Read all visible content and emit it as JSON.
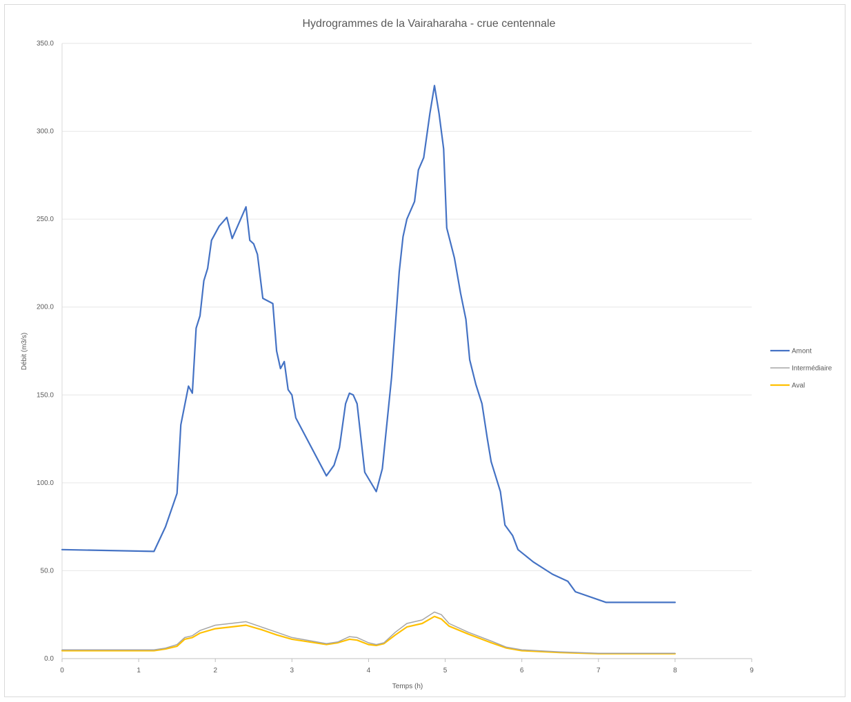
{
  "chart_data": {
    "type": "line",
    "title": "Hydrogrammes de la Vairaharaha - crue centennale",
    "xlabel": "Temps (h)",
    "ylabel": "Débit (m3/s)",
    "xlim": [
      0,
      9
    ],
    "ylim": [
      0,
      350
    ],
    "xticks": [
      "0",
      "1",
      "2",
      "3",
      "4",
      "5",
      "6",
      "7",
      "8",
      "9"
    ],
    "yticks": [
      "0.0",
      "50.0",
      "100.0",
      "150.0",
      "200.0",
      "250.0",
      "300.0",
      "350.0"
    ],
    "grid": "horizontal",
    "legend": "right",
    "colors": {
      "Amont": "#4472c4",
      "Intermédiaire": "#a5a5a5",
      "Aval": "#ffc000"
    },
    "series": [
      {
        "name": "Amont",
        "points": [
          [
            0,
            62
          ],
          [
            1.2,
            61
          ],
          [
            1.35,
            75
          ],
          [
            1.5,
            94
          ],
          [
            1.55,
            133
          ],
          [
            1.65,
            155
          ],
          [
            1.7,
            151
          ],
          [
            1.75,
            188
          ],
          [
            1.8,
            195
          ],
          [
            1.85,
            215
          ],
          [
            1.9,
            222
          ],
          [
            1.95,
            238
          ],
          [
            2.05,
            246
          ],
          [
            2.15,
            251
          ],
          [
            2.22,
            239
          ],
          [
            2.3,
            247
          ],
          [
            2.4,
            257
          ],
          [
            2.45,
            238
          ],
          [
            2.5,
            236
          ],
          [
            2.55,
            230
          ],
          [
            2.62,
            205
          ],
          [
            2.75,
            202
          ],
          [
            2.8,
            175
          ],
          [
            2.85,
            165
          ],
          [
            2.9,
            169
          ],
          [
            2.95,
            153
          ],
          [
            3.0,
            150
          ],
          [
            3.05,
            137
          ],
          [
            3.45,
            104
          ],
          [
            3.55,
            110
          ],
          [
            3.62,
            120
          ],
          [
            3.7,
            145
          ],
          [
            3.75,
            151
          ],
          [
            3.8,
            150
          ],
          [
            3.85,
            145
          ],
          [
            3.95,
            106
          ],
          [
            4.1,
            95
          ],
          [
            4.18,
            108
          ],
          [
            4.3,
            160
          ],
          [
            4.4,
            220
          ],
          [
            4.45,
            240
          ],
          [
            4.5,
            250
          ],
          [
            4.6,
            260
          ],
          [
            4.65,
            278
          ],
          [
            4.72,
            285
          ],
          [
            4.8,
            310
          ],
          [
            4.86,
            326
          ],
          [
            4.92,
            310
          ],
          [
            4.98,
            290
          ],
          [
            5.02,
            245
          ],
          [
            5.12,
            228
          ],
          [
            5.2,
            208
          ],
          [
            5.27,
            193
          ],
          [
            5.32,
            170
          ],
          [
            5.4,
            156
          ],
          [
            5.48,
            145
          ],
          [
            5.55,
            125
          ],
          [
            5.6,
            112
          ],
          [
            5.72,
            95
          ],
          [
            5.78,
            76
          ],
          [
            5.88,
            70
          ],
          [
            5.95,
            62
          ],
          [
            6.15,
            55
          ],
          [
            6.4,
            48
          ],
          [
            6.6,
            44
          ],
          [
            6.7,
            38
          ],
          [
            7.1,
            32
          ],
          [
            8,
            32
          ]
        ]
      },
      {
        "name": "Intermédiaire",
        "points": [
          [
            0,
            5
          ],
          [
            1.2,
            5
          ],
          [
            1.35,
            6
          ],
          [
            1.5,
            8
          ],
          [
            1.6,
            12
          ],
          [
            1.7,
            13
          ],
          [
            1.8,
            16
          ],
          [
            2.0,
            19
          ],
          [
            2.2,
            20
          ],
          [
            2.4,
            21
          ],
          [
            2.6,
            18
          ],
          [
            2.8,
            15
          ],
          [
            3.0,
            12
          ],
          [
            3.45,
            8.5
          ],
          [
            3.6,
            9.5
          ],
          [
            3.75,
            12.5
          ],
          [
            3.85,
            12
          ],
          [
            4.0,
            9
          ],
          [
            4.1,
            8
          ],
          [
            4.2,
            9
          ],
          [
            4.35,
            15
          ],
          [
            4.5,
            20
          ],
          [
            4.7,
            22
          ],
          [
            4.86,
            26.5
          ],
          [
            4.95,
            25
          ],
          [
            5.05,
            20
          ],
          [
            5.3,
            15
          ],
          [
            5.6,
            10
          ],
          [
            5.8,
            6.5
          ],
          [
            6.0,
            5
          ],
          [
            6.5,
            3.8
          ],
          [
            7.0,
            3
          ],
          [
            8,
            3
          ]
        ]
      },
      {
        "name": "Aval",
        "points": [
          [
            0,
            4.5
          ],
          [
            1.2,
            4.5
          ],
          [
            1.35,
            5.5
          ],
          [
            1.5,
            7
          ],
          [
            1.6,
            11
          ],
          [
            1.7,
            12
          ],
          [
            1.8,
            14.5
          ],
          [
            2.0,
            17
          ],
          [
            2.2,
            18
          ],
          [
            2.4,
            19
          ],
          [
            2.6,
            16.5
          ],
          [
            2.8,
            13.5
          ],
          [
            3.0,
            11
          ],
          [
            3.45,
            8
          ],
          [
            3.6,
            9
          ],
          [
            3.75,
            11
          ],
          [
            3.85,
            10.5
          ],
          [
            4.0,
            8
          ],
          [
            4.1,
            7.5
          ],
          [
            4.2,
            8.5
          ],
          [
            4.35,
            13.5
          ],
          [
            4.5,
            18
          ],
          [
            4.7,
            20
          ],
          [
            4.86,
            24
          ],
          [
            4.95,
            22.5
          ],
          [
            5.05,
            18.5
          ],
          [
            5.3,
            14
          ],
          [
            5.6,
            9
          ],
          [
            5.8,
            6
          ],
          [
            6.0,
            4.5
          ],
          [
            6.5,
            3.5
          ],
          [
            7.0,
            2.8
          ],
          [
            8,
            2.8
          ]
        ]
      }
    ]
  }
}
